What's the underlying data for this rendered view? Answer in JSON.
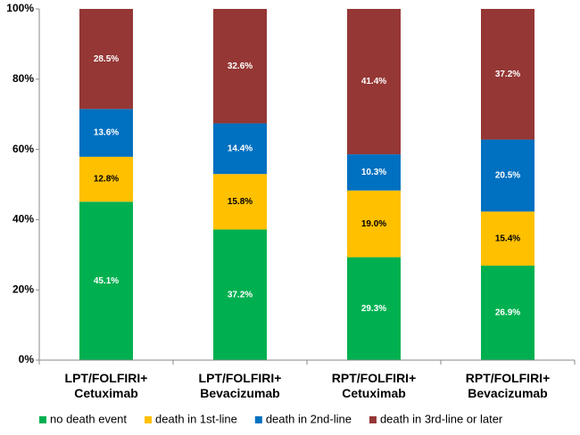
{
  "chart_data": {
    "type": "stacked-bar",
    "categories": [
      "LPT/FOLFIRI+ Cetuximab",
      "LPT/FOLFIRI+ Bevacizumab",
      "RPT/FOLFIRI+ Cetuximab",
      "RPT/FOLFIRI+ Bevacizumab"
    ],
    "series": [
      {
        "name": "no death event",
        "color": "#00b050",
        "values": [
          45.1,
          37.2,
          29.3,
          26.9
        ],
        "value_labels": [
          "45.1%",
          "37.2%",
          "29.3%",
          "26.9%"
        ]
      },
      {
        "name": "death in 1st-line",
        "color": "#ffc000",
        "values": [
          12.8,
          15.8,
          19.0,
          15.4
        ],
        "value_labels": [
          "12.8%",
          "15.8%",
          "19.0%",
          "15.4%"
        ]
      },
      {
        "name": "death in 2nd-line",
        "color": "#0070c0",
        "values": [
          13.6,
          14.4,
          10.3,
          20.5
        ],
        "value_labels": [
          "13.6%",
          "14.4%",
          "10.3%",
          "20.5%"
        ]
      },
      {
        "name": "death in 3rd-line or later",
        "color": "#953735",
        "values": [
          28.5,
          32.6,
          41.4,
          37.2
        ],
        "value_labels": [
          "28.5%",
          "32.6%",
          "41.4%",
          "37.2%"
        ]
      }
    ],
    "ylim": [
      0,
      100
    ],
    "yticks": [
      {
        "value": 0,
        "label": "0%"
      },
      {
        "value": 20,
        "label": "20%"
      },
      {
        "value": 40,
        "label": "40%"
      },
      {
        "value": 60,
        "label": "60%"
      },
      {
        "value": 80,
        "label": "80%"
      },
      {
        "value": 100,
        "label": "100%"
      }
    ],
    "grid": false,
    "legend": "bottom"
  }
}
